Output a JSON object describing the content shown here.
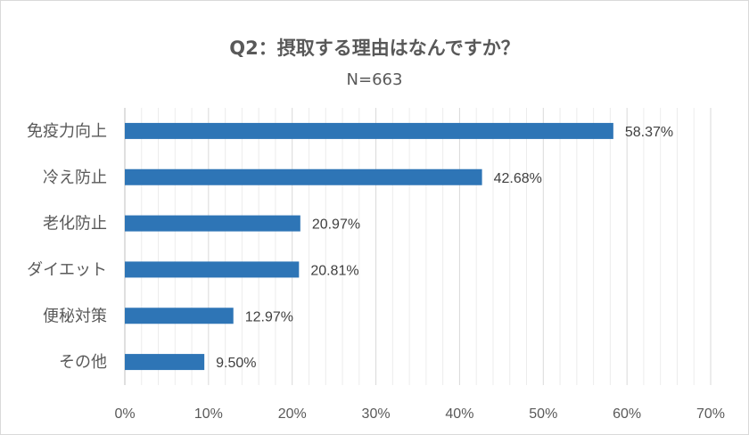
{
  "chart_data": {
    "type": "bar",
    "orientation": "horizontal",
    "title": "Q2：摂取する理由はなんですか？",
    "subtitle": "N=663",
    "categories": [
      "免疫力向上",
      "冷え防止",
      "老化防止",
      "ダイエット",
      "便秘対策",
      "その他"
    ],
    "values": [
      58.37,
      42.68,
      20.97,
      20.81,
      12.97,
      9.5
    ],
    "value_labels": [
      "58.37%",
      "42.68%",
      "20.97%",
      "20.81%",
      "12.97%",
      "9.50%"
    ],
    "xlim": [
      0,
      70
    ],
    "x_ticks": [
      "0%",
      "10%",
      "20%",
      "30%",
      "40%",
      "50%",
      "60%",
      "70%"
    ],
    "grid": true,
    "bar_color": "#2e75b6"
  }
}
